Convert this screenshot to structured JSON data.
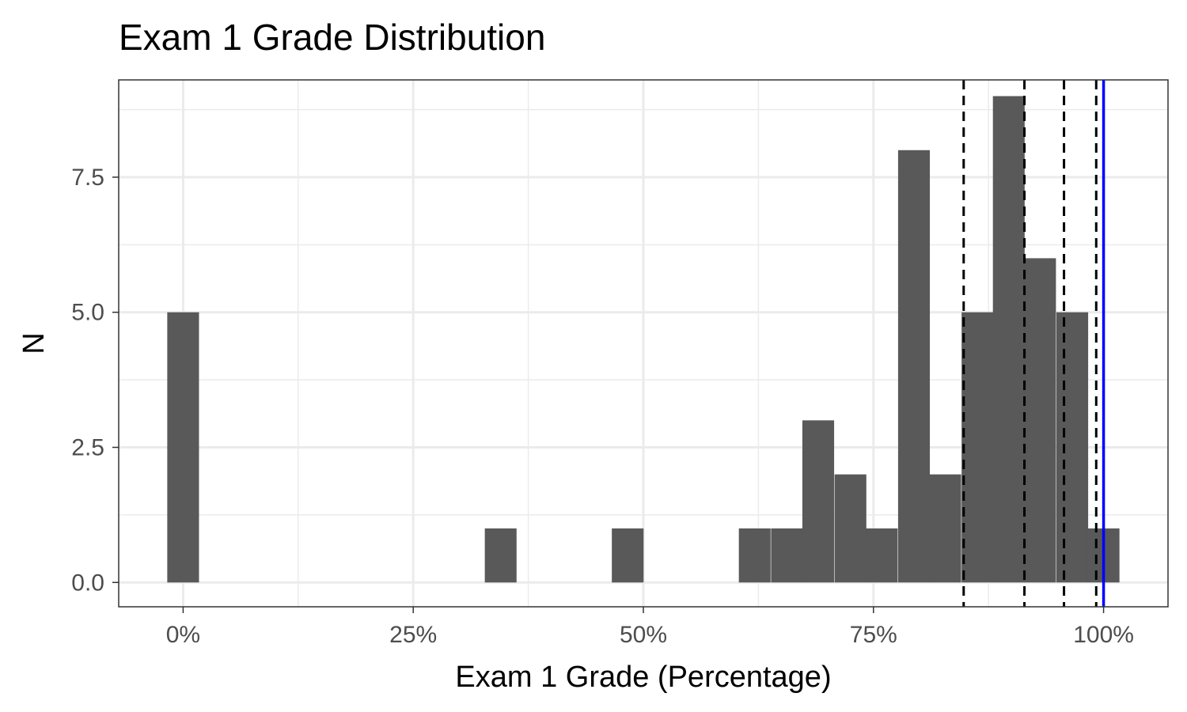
{
  "chart_data": {
    "type": "bar",
    "title": "Exam 1 Grade Distribution",
    "xlabel": "Exam 1 Grade (Percentage)",
    "ylabel": "N",
    "xlim": [
      -7,
      107
    ],
    "ylim": [
      -0.45,
      9.3
    ],
    "x_ticks": [
      0,
      25,
      50,
      75,
      100
    ],
    "x_tick_labels": [
      "0%",
      "25%",
      "50%",
      "75%",
      "100%"
    ],
    "y_ticks": [
      0,
      2.5,
      5,
      7.5
    ],
    "y_tick_labels": [
      "0.0",
      "2.5",
      "5.0",
      "7.5"
    ],
    "bin_width": 3.45,
    "bins": [
      {
        "x": 0,
        "count": 5
      },
      {
        "x": 34.5,
        "count": 1
      },
      {
        "x": 48.3,
        "count": 1
      },
      {
        "x": 62.1,
        "count": 1
      },
      {
        "x": 65.6,
        "count": 1
      },
      {
        "x": 69.0,
        "count": 3
      },
      {
        "x": 72.5,
        "count": 2
      },
      {
        "x": 75.9,
        "count": 1
      },
      {
        "x": 79.4,
        "count": 8
      },
      {
        "x": 82.8,
        "count": 2
      },
      {
        "x": 86.3,
        "count": 5
      },
      {
        "x": 89.7,
        "count": 9
      },
      {
        "x": 93.1,
        "count": 6
      },
      {
        "x": 96.6,
        "count": 5
      },
      {
        "x": 100.0,
        "count": 1
      }
    ],
    "reference_lines": [
      {
        "x": 84.8,
        "style": "dashed",
        "color": "#000000"
      },
      {
        "x": 91.4,
        "style": "dashed",
        "color": "#000000"
      },
      {
        "x": 95.7,
        "style": "dashed",
        "color": "#000000"
      },
      {
        "x": 99.2,
        "style": "dashed",
        "color": "#000000"
      },
      {
        "x": 100.0,
        "style": "solid",
        "color": "#0000ff"
      }
    ],
    "bar_color": "#595959",
    "grid": true,
    "legend": "none"
  }
}
